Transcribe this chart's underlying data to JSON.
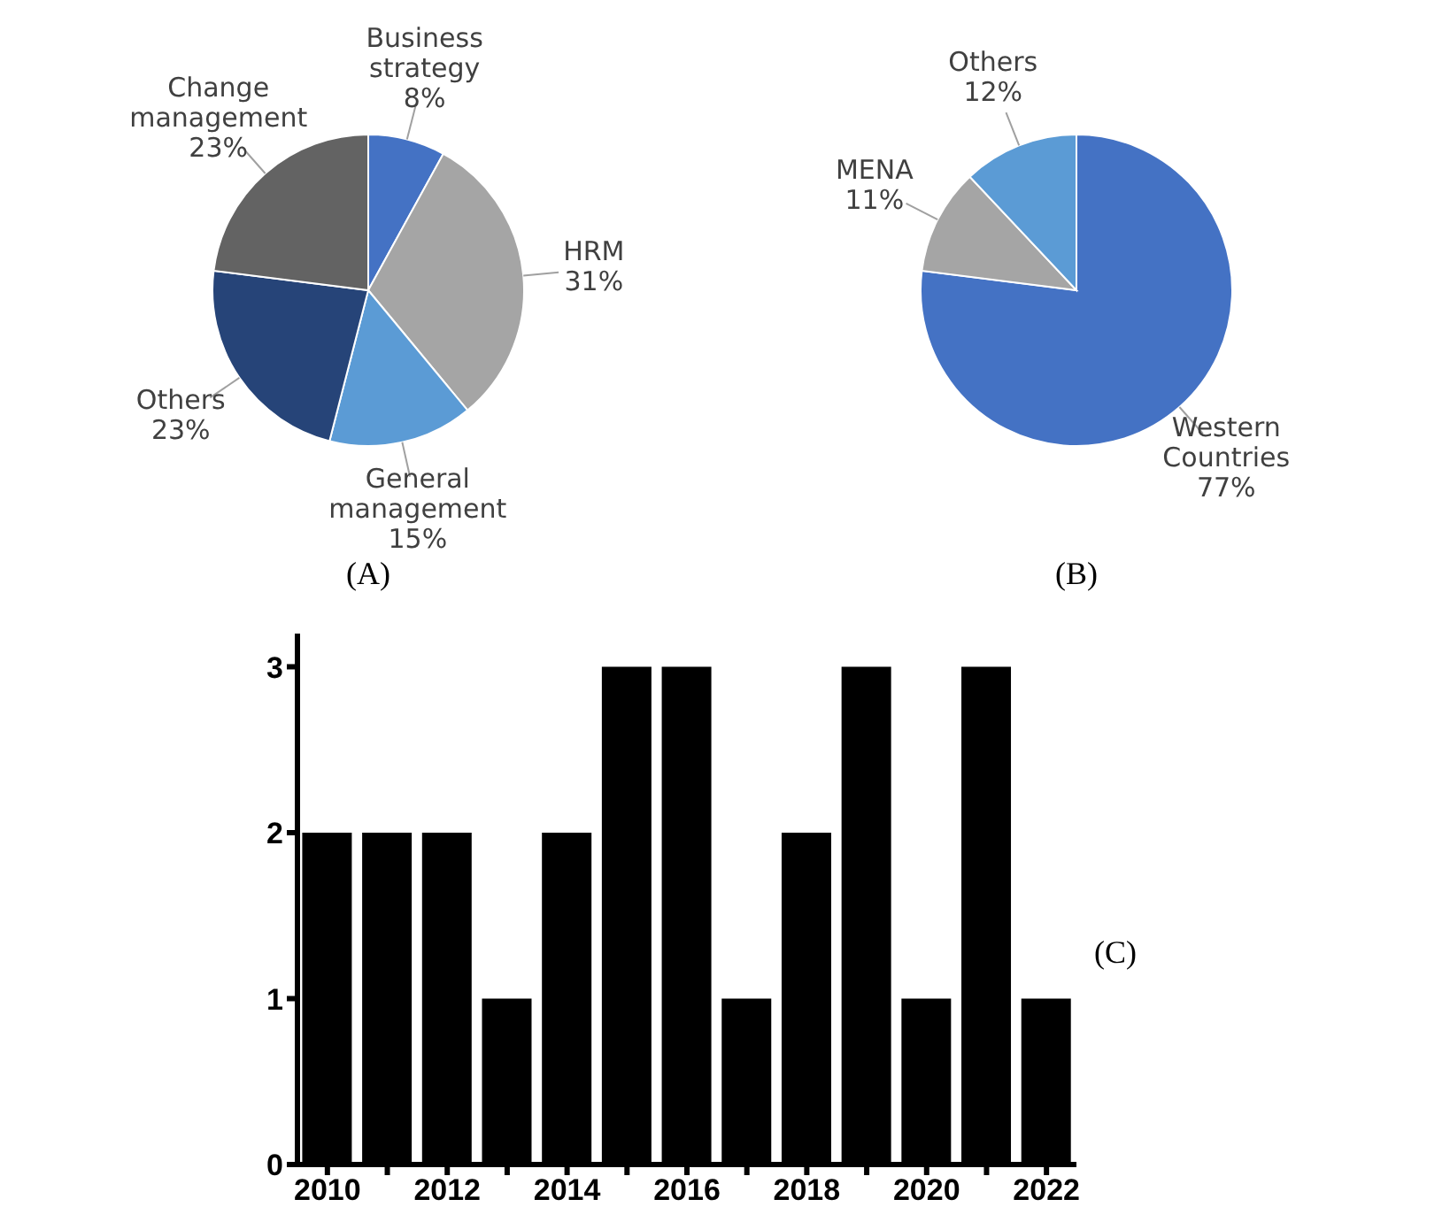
{
  "chart_data": [
    {
      "type": "pie",
      "categories": [
        "Business strategy",
        "HRM",
        "General management",
        "Others",
        "Change management"
      ],
      "values": [
        8,
        31,
        15,
        23,
        23
      ],
      "value_labels": [
        "8%",
        "31%",
        "15%",
        "23%",
        "23%"
      ],
      "colors": [
        "#4472c4",
        "#a5a5a5",
        "#5b9bd5",
        "#264478",
        "#636363"
      ],
      "annotations": [
        "(A)"
      ],
      "legend": false
    },
    {
      "type": "pie",
      "categories": [
        "Western Countries",
        "MENA",
        "Others"
      ],
      "values": [
        77,
        11,
        12
      ],
      "value_labels": [
        "77%",
        "11%",
        "12%"
      ],
      "colors": [
        "#4472c4",
        "#a5a5a5",
        "#5b9bd5"
      ],
      "annotations": [
        "(B)"
      ],
      "legend": false
    },
    {
      "type": "bar",
      "categories": [
        "2010",
        null,
        "2012",
        null,
        "2014",
        null,
        "2016",
        null,
        "2018",
        null,
        "2020",
        null,
        "2022"
      ],
      "values": [
        2,
        2,
        2,
        1,
        2,
        3,
        3,
        1,
        2,
        3,
        1,
        3,
        1
      ],
      "color": "#000000",
      "ylim": [
        0,
        3.2
      ],
      "yticks": [
        0,
        1,
        2,
        3
      ],
      "grid": false,
      "legend": false,
      "annotations": [
        "(C)"
      ]
    }
  ]
}
